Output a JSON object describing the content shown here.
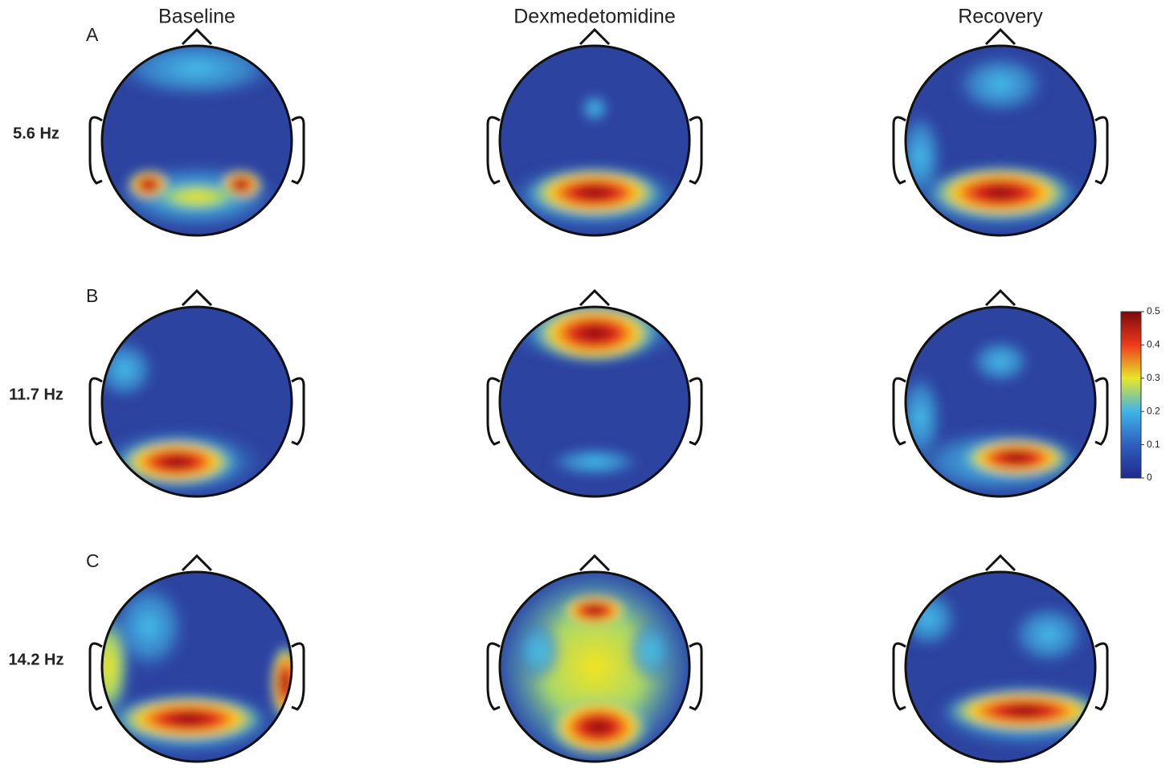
{
  "columns": [
    "Baseline",
    "Dexmedetomidine",
    "Recovery"
  ],
  "rows": [
    {
      "letter": "A",
      "frequency": "5.6 Hz"
    },
    {
      "letter": "B",
      "frequency": "11.7 Hz"
    },
    {
      "letter": "C",
      "frequency": "14.2 Hz"
    }
  ],
  "colorbar": {
    "ylim": [
      0,
      0.5
    ],
    "ticks": [
      0,
      0.1,
      0.2,
      0.3,
      0.4,
      0.5
    ]
  }
}
